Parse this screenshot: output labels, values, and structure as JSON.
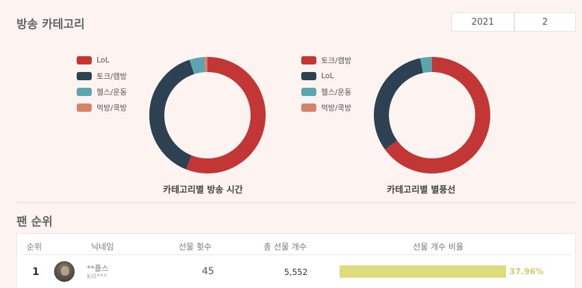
{
  "category_section": {
    "title": "방송 카테고리",
    "year": "2021",
    "month": "2"
  },
  "chart_data": [
    {
      "type": "pie",
      "title": "카테고리별 방송 시간",
      "categories": [
        "LoL",
        "토크/캠방",
        "헬스/운동",
        "먹방/쿡방"
      ],
      "values": [
        56,
        39,
        4.2,
        0.8
      ],
      "colors": [
        "#c33636",
        "#2e4153",
        "#5ca4ae",
        "#d9826a"
      ],
      "legend": "left"
    },
    {
      "type": "pie",
      "title": "카테고리별 별풍선",
      "categories": [
        "토크/캠방",
        "LoL",
        "헬스/운동",
        "먹방/쿡방"
      ],
      "values": [
        65,
        31.7,
        3.3,
        0
      ],
      "colors": [
        "#c33636",
        "#2e4153",
        "#5ca4ae",
        "#d9826a"
      ],
      "legend": "left"
    }
  ],
  "ranking_section": {
    "title": "팬 순위",
    "columns": [
      "순위",
      "닉네임",
      "선물 횟수",
      "총 선물 개수",
      "선물 개수 비율"
    ],
    "rows": [
      {
        "rank": "1",
        "nickname": "**플스",
        "user_id": "kill***",
        "gift_count": "45",
        "total_gifts": "5,552",
        "ratio": 37.96,
        "ratio_label": "37.96%"
      }
    ]
  }
}
